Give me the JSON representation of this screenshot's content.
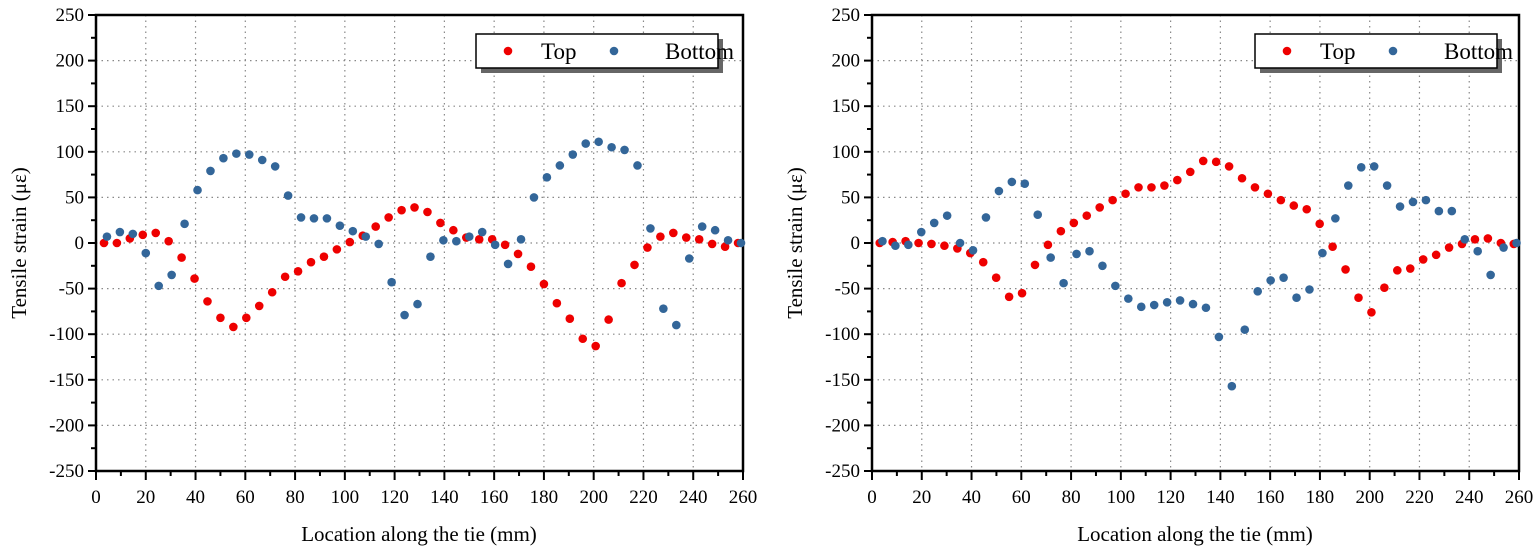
{
  "chart_data": [
    {
      "type": "scatter",
      "xlabel": "Location along the tie (mm)",
      "ylabel": "Tensile strain (με)",
      "xlim": [
        0,
        260
      ],
      "ylim": [
        -250,
        250
      ],
      "xticks": [
        "0",
        "20",
        "40",
        "60",
        "80",
        "100",
        "120",
        "140",
        "160",
        "180",
        "200",
        "220",
        "240",
        "260"
      ],
      "yticks": [
        "250",
        "200",
        "150",
        "100",
        "50",
        "0",
        "-50",
        "-100",
        "-150",
        "-200",
        "-250"
      ],
      "grid": true,
      "legend_position": "top-right",
      "series": [
        {
          "name": "Top",
          "color": "#ee0000",
          "x": [
            3.2,
            8.4,
            13.6,
            18.8,
            24.0,
            29.2,
            34.4,
            39.6,
            44.8,
            50.0,
            55.2,
            60.4,
            65.6,
            70.8,
            76.0,
            81.2,
            86.4,
            91.6,
            96.8,
            102.0,
            107.2,
            112.4,
            117.6,
            122.8,
            128.0,
            133.2,
            138.4,
            143.6,
            148.8,
            154.0,
            159.2,
            164.4,
            169.6,
            174.8,
            180.0,
            185.2,
            190.4,
            195.6,
            200.8,
            206.0,
            211.2,
            216.4,
            221.6,
            226.8,
            232.0,
            237.2,
            242.4,
            247.6,
            252.8,
            258.0
          ],
          "y": [
            0,
            0,
            5,
            9,
            11,
            2,
            -16,
            -39,
            -64,
            -82,
            -92,
            -82,
            -69,
            -54,
            -37,
            -31,
            -21,
            -15,
            -7,
            1,
            8,
            18,
            28,
            36,
            39,
            34,
            22,
            14,
            6,
            4,
            4,
            -2,
            -12,
            -26,
            -45,
            -66,
            -83,
            -105,
            -113,
            -84,
            -44,
            -24,
            -5,
            7,
            11,
            6,
            4,
            -1,
            -4,
            0
          ]
        },
        {
          "name": "Bottom",
          "color": "#336699",
          "x": [
            4.4,
            9.6,
            14.8,
            20.0,
            25.2,
            30.4,
            35.6,
            40.8,
            46.0,
            51.2,
            56.4,
            61.6,
            66.8,
            72.0,
            77.2,
            82.4,
            87.6,
            92.8,
            98.0,
            103.2,
            108.4,
            113.6,
            118.8,
            124.0,
            129.2,
            134.4,
            139.6,
            144.8,
            150.0,
            155.2,
            160.4,
            165.6,
            170.8,
            176.0,
            181.2,
            186.4,
            191.6,
            196.8,
            202.0,
            207.2,
            212.4,
            217.6,
            222.8,
            228.0,
            233.2,
            238.4,
            243.6,
            248.8,
            254.0,
            259.2
          ],
          "y": [
            7,
            12,
            10,
            -11,
            -47,
            -35,
            21,
            58,
            79,
            93,
            98,
            97,
            91,
            84,
            52,
            28,
            27,
            27,
            19,
            13,
            7,
            -1,
            -43,
            -79,
            -67,
            -15,
            3,
            2,
            7,
            12,
            -2,
            -23,
            4,
            50,
            72,
            85,
            97,
            109,
            111,
            105,
            102,
            85,
            16,
            -72,
            -90,
            -17,
            18,
            14,
            3,
            0
          ]
        }
      ]
    },
    {
      "type": "scatter",
      "xlabel": "Location along the tie (mm)",
      "ylabel": "Tensile strain (με)",
      "xlim": [
        0,
        260
      ],
      "ylim": [
        -250,
        250
      ],
      "xticks": [
        "0",
        "20",
        "40",
        "60",
        "80",
        "100",
        "120",
        "140",
        "160",
        "180",
        "200",
        "220",
        "240",
        "260"
      ],
      "yticks": [
        "250",
        "200",
        "150",
        "100",
        "50",
        "0",
        "-50",
        "-100",
        "-150",
        "-200",
        "-250"
      ],
      "grid": true,
      "legend_position": "top-right",
      "series": [
        {
          "name": "Top",
          "color": "#ee0000",
          "x": [
            3.1,
            8.3,
            13.5,
            18.7,
            23.9,
            29.1,
            34.3,
            39.5,
            44.7,
            49.9,
            55.1,
            60.3,
            65.5,
            70.7,
            75.9,
            81.1,
            86.3,
            91.5,
            96.7,
            101.9,
            107.1,
            112.3,
            117.5,
            122.7,
            127.9,
            133.1,
            138.3,
            143.5,
            148.7,
            153.9,
            159.1,
            164.3,
            169.5,
            174.7,
            179.9,
            185.1,
            190.3,
            195.5,
            200.7,
            205.9,
            211.1,
            216.3,
            221.5,
            226.7,
            231.9,
            237.1,
            242.3,
            247.5,
            252.7,
            257.9
          ],
          "y": [
            0,
            1,
            2,
            0,
            -1,
            -3,
            -6,
            -11,
            -21,
            -38,
            -59,
            -55,
            -24,
            -2,
            13,
            22,
            30,
            39,
            47,
            54,
            61,
            61,
            63,
            69,
            78,
            90,
            89,
            84,
            71,
            61,
            54,
            47,
            41,
            37,
            21,
            -4,
            -29,
            -60,
            -76,
            -49,
            -30,
            -28,
            -18,
            -13,
            -5,
            -1,
            4,
            5,
            0,
            -1
          ]
        },
        {
          "name": "Bottom",
          "color": "#336699",
          "x": [
            4.2,
            9.4,
            14.6,
            19.8,
            25.0,
            30.2,
            35.4,
            40.6,
            45.8,
            51.0,
            56.2,
            61.4,
            66.6,
            71.8,
            77.0,
            82.2,
            87.4,
            92.6,
            97.8,
            103.0,
            108.2,
            113.4,
            118.6,
            123.8,
            129.0,
            134.2,
            139.4,
            144.6,
            149.8,
            155.0,
            160.2,
            165.4,
            170.6,
            175.8,
            181.0,
            186.2,
            191.4,
            196.6,
            201.8,
            207.0,
            212.2,
            217.4,
            222.6,
            227.8,
            233.0,
            238.2,
            243.4,
            248.6,
            253.8,
            259.0
          ],
          "y": [
            2,
            -3,
            -2,
            12,
            22,
            30,
            0,
            -8,
            28,
            57,
            67,
            65,
            31,
            -16,
            -44,
            -12,
            -9,
            -25,
            -47,
            -61,
            -70,
            -68,
            -65,
            -63,
            -67,
            -71,
            -103,
            -157,
            -95,
            -53,
            -41,
            -38,
            -60,
            -51,
            -11,
            27,
            63,
            83,
            84,
            63,
            40,
            45,
            47,
            35,
            35,
            4,
            -9,
            -35,
            -5,
            0
          ]
        }
      ]
    }
  ]
}
